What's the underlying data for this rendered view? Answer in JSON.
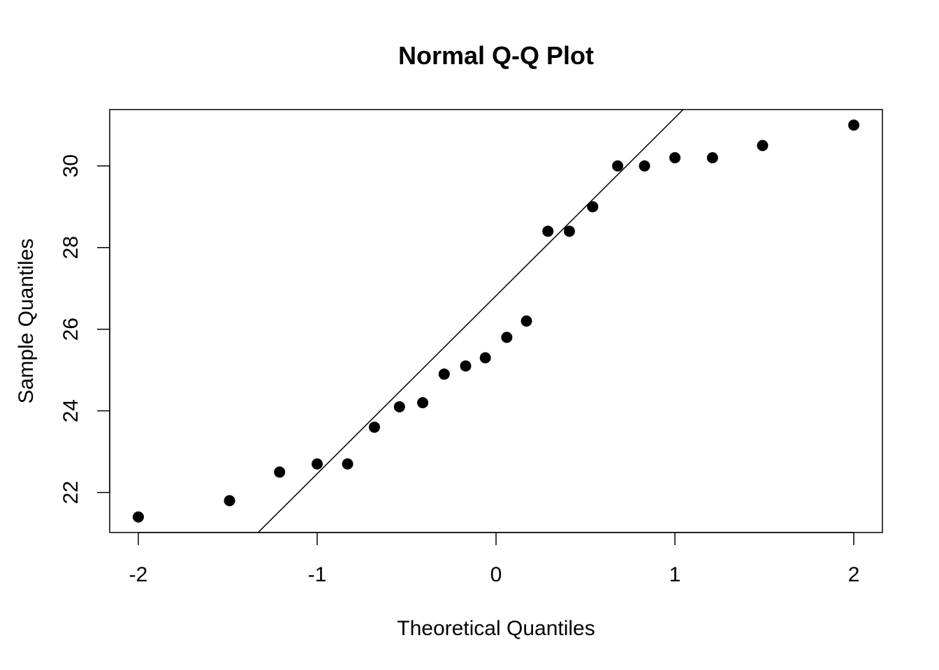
{
  "chart_data": {
    "type": "scatter",
    "title": "Normal Q-Q Plot",
    "xlabel": "Theoretical Quantiles",
    "ylabel": "Sample Quantiles",
    "xlim": [
      -2.16,
      2.16
    ],
    "ylim": [
      21.02,
      31.38
    ],
    "xticks": [
      -2,
      -1,
      0,
      1,
      2
    ],
    "xtick_labels": [
      "-2",
      "-1",
      "0",
      "1",
      "2"
    ],
    "yticks": [
      22,
      24,
      26,
      28,
      30
    ],
    "ytick_labels": [
      "22",
      "24",
      "26",
      "28",
      "30"
    ],
    "grid": false,
    "series": [
      {
        "points": [
          {
            "x": -2.0,
            "y": 21.4
          },
          {
            "x": -1.49,
            "y": 21.8
          },
          {
            "x": -1.21,
            "y": 22.5
          },
          {
            "x": -1.0,
            "y": 22.7
          },
          {
            "x": -0.83,
            "y": 22.7
          },
          {
            "x": -0.68,
            "y": 23.6
          },
          {
            "x": -0.54,
            "y": 24.1
          },
          {
            "x": -0.41,
            "y": 24.2
          },
          {
            "x": -0.29,
            "y": 24.9
          },
          {
            "x": -0.17,
            "y": 25.1
          },
          {
            "x": -0.06,
            "y": 25.3
          },
          {
            "x": 0.06,
            "y": 25.8
          },
          {
            "x": 0.17,
            "y": 26.2
          },
          {
            "x": 0.29,
            "y": 28.4
          },
          {
            "x": 0.41,
            "y": 28.4
          },
          {
            "x": 0.54,
            "y": 29.0
          },
          {
            "x": 0.68,
            "y": 30.0
          },
          {
            "x": 0.83,
            "y": 30.0
          },
          {
            "x": 1.0,
            "y": 30.2
          },
          {
            "x": 1.21,
            "y": 30.2
          },
          {
            "x": 1.49,
            "y": 30.5
          },
          {
            "x": 2.0,
            "y": 31.0
          }
        ]
      }
    ],
    "reference_line": {
      "intercept": 26.82,
      "slope": 4.36
    }
  }
}
